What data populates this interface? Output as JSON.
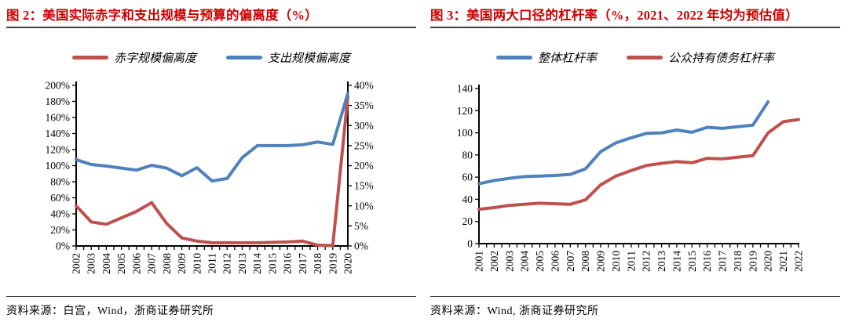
{
  "colors": {
    "title_red": "#cc0000",
    "line_red": "#c0504d",
    "line_blue": "#4f81bd",
    "axis_black": "#000000"
  },
  "figure2": {
    "title": "图 2：美国实际赤字和支出规模与预算的偏离度（%）",
    "legend": [
      {
        "label": "赤字规模偏离度",
        "color": "#c0504d"
      },
      {
        "label": "支出规模偏离度",
        "color": "#4f81bd"
      }
    ],
    "source": "资料来源：白宫，Wind，浙商证券研究所",
    "chart_data": {
      "type": "line",
      "grid": false,
      "legend_position": "top",
      "categories": [
        "2002",
        "2003",
        "2004",
        "2005",
        "2006",
        "2007",
        "2008",
        "2009",
        "2010",
        "2011",
        "2012",
        "2013",
        "2014",
        "2015",
        "2016",
        "2017",
        "2018",
        "2019",
        "2020"
      ],
      "left_axis": {
        "min": 0,
        "max": 200,
        "step": 20,
        "suffix": "%"
      },
      "right_axis": {
        "min": 0,
        "max": 40,
        "step": 5,
        "suffix": "%"
      },
      "series": [
        {
          "name": "赤字规模偏离度",
          "axis": "left",
          "color": "#c0504d",
          "values": [
            50,
            30,
            27,
            35,
            43,
            54,
            28,
            10,
            6,
            4,
            4,
            4,
            4,
            4.5,
            5,
            6,
            1,
            0.5,
            186
          ]
        },
        {
          "name": "支出规模偏离度",
          "axis": "right",
          "color": "#4f81bd",
          "values": [
            21.5,
            20.3,
            19.9,
            19.4,
            18.9,
            20.1,
            19.4,
            17.5,
            19.5,
            16.2,
            16.8,
            22,
            25,
            25,
            25,
            25.2,
            25.9,
            25.3,
            38
          ]
        }
      ]
    }
  },
  "figure3": {
    "title": "图 3：美国两大口径的杠杆率（%，2021、2022 年均为预估值）",
    "legend": [
      {
        "label": "整体杠杆率",
        "color": "#4f81bd"
      },
      {
        "label": "公众持有债务杠杆率",
        "color": "#c0504d"
      }
    ],
    "source": "资料来源：Wind, 浙商证券研究所",
    "chart_data": {
      "type": "line",
      "grid": false,
      "legend_position": "top",
      "categories": [
        "2001",
        "2002",
        "2003",
        "2004",
        "2005",
        "2006",
        "2007",
        "2008",
        "2009",
        "2010",
        "2011",
        "2012",
        "2013",
        "2014",
        "2015",
        "2016",
        "2017",
        "2018",
        "2019",
        "2020",
        "2021",
        "2022"
      ],
      "left_axis": {
        "min": 0,
        "max": 140,
        "step": 20,
        "suffix": ""
      },
      "series": [
        {
          "name": "整体杠杆率",
          "axis": "left",
          "color": "#4f81bd",
          "values": [
            54,
            57,
            59,
            60.5,
            61,
            61.5,
            62.5,
            67.5,
            83,
            91,
            95.5,
            99.5,
            100,
            102.5,
            100.5,
            105,
            104,
            105.5,
            107,
            128,
            null,
            null
          ]
        },
        {
          "name": "公众持有债务杠杆率",
          "axis": "left",
          "color": "#c0504d",
          "values": [
            31,
            32.5,
            34.5,
            35.5,
            36.5,
            36,
            35.5,
            39.5,
            53,
            61,
            66,
            70.5,
            72.5,
            74,
            73,
            77,
            76.5,
            78,
            79.5,
            100,
            110,
            112
          ]
        }
      ]
    }
  }
}
